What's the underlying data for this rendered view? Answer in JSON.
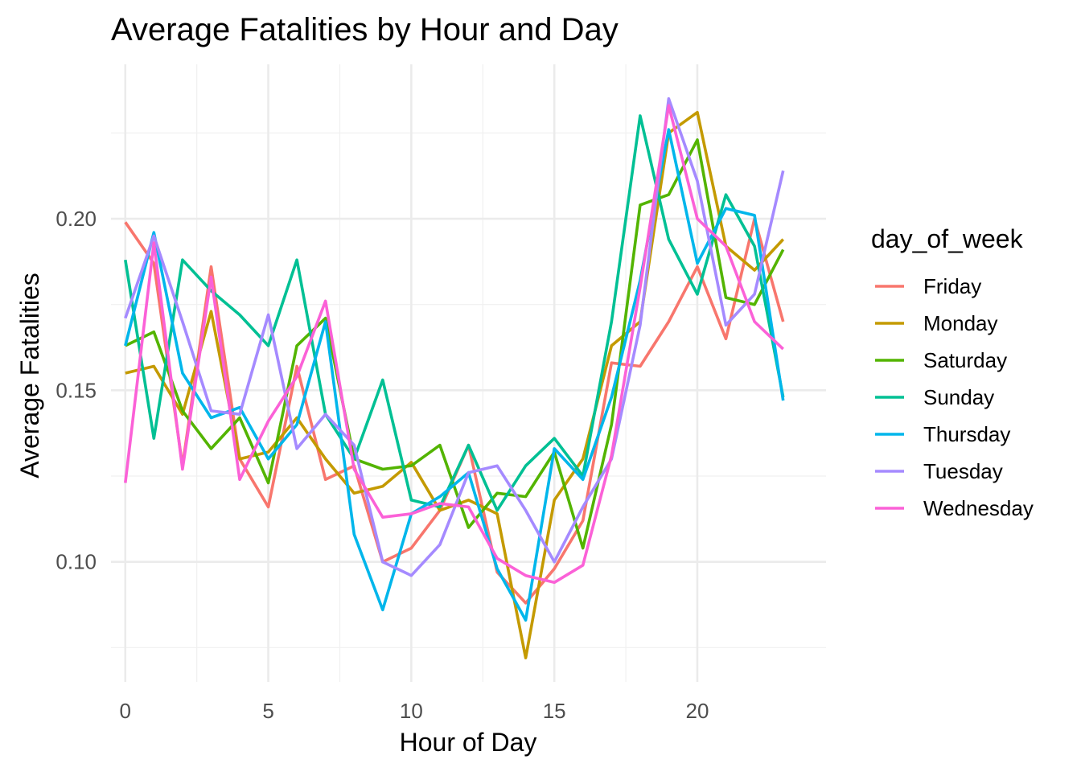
{
  "chart_data": {
    "type": "line",
    "title": "Average Fatalities by Hour and Day",
    "xlabel": "Hour of Day",
    "ylabel": "Average Fatalities",
    "xlim": [
      -0.5,
      24.5
    ],
    "ylim": [
      0.065,
      0.245
    ],
    "x_ticks": [
      0,
      5,
      10,
      15,
      20
    ],
    "y_ticks": [
      0.1,
      0.15,
      0.2
    ],
    "y_tick_labels": [
      "0.10",
      "0.15",
      "0.20"
    ],
    "grid": true,
    "legend": {
      "title": "day_of_week",
      "position": "right"
    },
    "x": [
      0,
      1,
      2,
      3,
      4,
      5,
      6,
      7,
      8,
      9,
      10,
      11,
      12,
      13,
      14,
      15,
      16,
      17,
      18,
      19,
      20,
      21,
      22,
      23
    ],
    "series": [
      {
        "name": "Friday",
        "color": "#F8766D",
        "values": [
          0.199,
          0.187,
          0.128,
          0.186,
          0.13,
          0.116,
          0.157,
          0.124,
          0.128,
          0.1,
          0.104,
          0.115,
          0.134,
          0.097,
          0.088,
          0.098,
          0.112,
          0.158,
          0.157,
          0.17,
          0.186,
          0.165,
          0.2,
          0.17
        ]
      },
      {
        "name": "Monday",
        "color": "#C49A00",
        "values": [
          0.155,
          0.157,
          0.143,
          0.173,
          0.13,
          0.132,
          0.142,
          0.13,
          0.12,
          0.122,
          0.129,
          0.115,
          0.118,
          0.114,
          0.072,
          0.118,
          0.13,
          0.163,
          0.17,
          0.225,
          0.231,
          0.192,
          0.185,
          0.194
        ]
      },
      {
        "name": "Saturday",
        "color": "#53B400",
        "values": [
          0.163,
          0.167,
          0.144,
          0.133,
          0.142,
          0.123,
          0.163,
          0.171,
          0.13,
          0.127,
          0.128,
          0.134,
          0.11,
          0.12,
          0.119,
          0.132,
          0.104,
          0.14,
          0.204,
          0.207,
          0.223,
          0.177,
          0.175,
          0.191
        ]
      },
      {
        "name": "Sunday",
        "color": "#00C094",
        "values": [
          0.188,
          0.136,
          0.188,
          0.179,
          0.172,
          0.163,
          0.188,
          0.143,
          0.13,
          0.153,
          0.118,
          0.116,
          0.134,
          0.115,
          0.128,
          0.136,
          0.125,
          0.17,
          0.23,
          0.194,
          0.178,
          0.207,
          0.192,
          0.148
        ]
      },
      {
        "name": "Thursday",
        "color": "#00B6EB",
        "values": [
          0.163,
          0.196,
          0.155,
          0.142,
          0.145,
          0.13,
          0.14,
          0.17,
          0.108,
          0.086,
          0.114,
          0.119,
          0.126,
          0.098,
          0.083,
          0.133,
          0.124,
          0.148,
          0.182,
          0.226,
          0.187,
          0.203,
          0.201,
          0.147
        ]
      },
      {
        "name": "Tuesday",
        "color": "#A58AFF",
        "values": [
          0.171,
          0.195,
          0.17,
          0.144,
          0.143,
          0.172,
          0.133,
          0.143,
          0.134,
          0.1,
          0.096,
          0.105,
          0.126,
          0.128,
          0.115,
          0.1,
          0.116,
          0.13,
          0.169,
          0.235,
          0.211,
          0.169,
          0.178,
          0.214
        ]
      },
      {
        "name": "Wednesday",
        "color": "#FB61D7",
        "values": [
          0.123,
          0.193,
          0.127,
          0.183,
          0.124,
          0.141,
          0.154,
          0.176,
          0.127,
          0.113,
          0.114,
          0.117,
          0.116,
          0.101,
          0.096,
          0.094,
          0.099,
          0.131,
          0.18,
          0.233,
          0.2,
          0.192,
          0.17,
          0.162
        ]
      }
    ]
  }
}
